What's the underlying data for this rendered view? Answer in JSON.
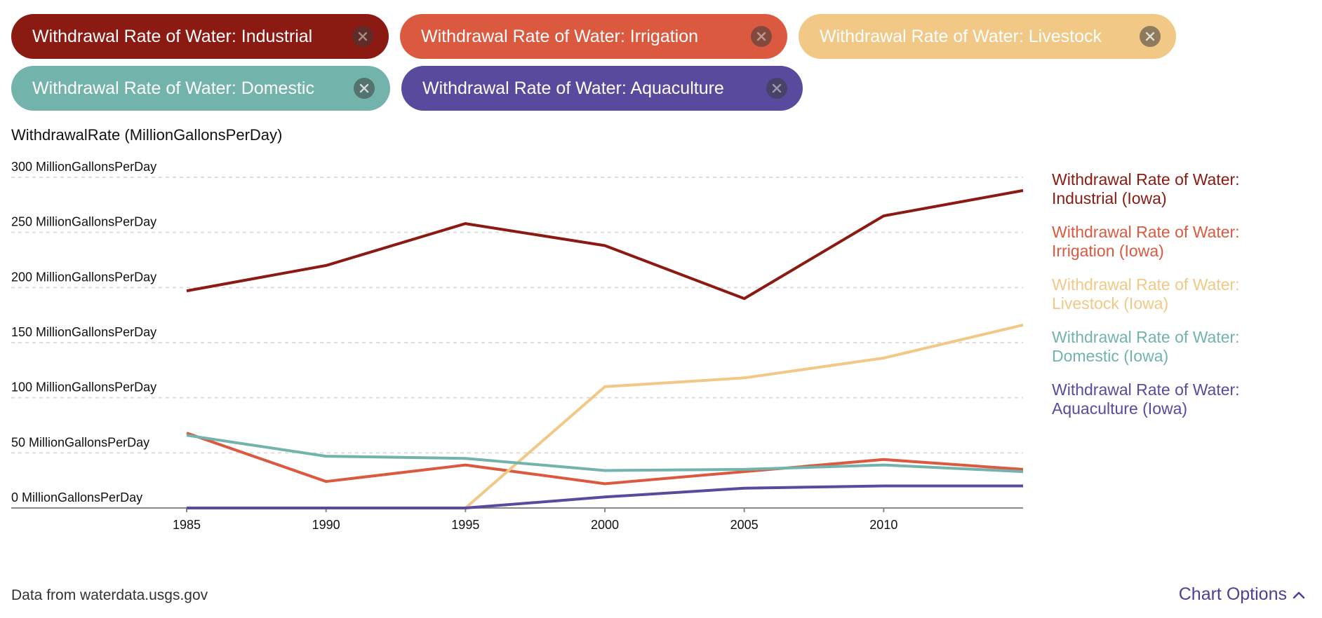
{
  "chips": [
    {
      "label": "Withdrawal Rate of Water: Industrial",
      "color": "#8b1a12"
    },
    {
      "label": "Withdrawal Rate of Water: Irrigation",
      "color": "#db5a3f"
    },
    {
      "label": "Withdrawal Rate of Water: Livestock",
      "color": "#f2c887"
    },
    {
      "label": "Withdrawal Rate of Water: Domestic",
      "color": "#72b3ac"
    },
    {
      "label": "Withdrawal Rate of Water: Aquaculture",
      "color": "#594a9e"
    }
  ],
  "chart_title_unit": "WithdrawalRate (MillionGallonsPerDay)",
  "source_text": "Data from waterdata.usgs.gov",
  "chart_options_label": "Chart Options",
  "chart_data": {
    "type": "line",
    "x": [
      1985,
      1990,
      1995,
      2000,
      2005,
      2010,
      2015
    ],
    "x_ticks": [
      "1985",
      "1990",
      "1995",
      "2000",
      "2005",
      "2010"
    ],
    "y_ticks": [
      {
        "value": 300,
        "label": "300 MillionGallonsPerDay"
      },
      {
        "value": 250,
        "label": "250 MillionGallonsPerDay"
      },
      {
        "value": 200,
        "label": "200 MillionGallonsPerDay"
      },
      {
        "value": 150,
        "label": "150 MillionGallonsPerDay"
      },
      {
        "value": 100,
        "label": "100 MillionGallonsPerDay"
      },
      {
        "value": 50,
        "label": "50 MillionGallonsPerDay"
      },
      {
        "value": 0,
        "label": "0 MillionGallonsPerDay"
      }
    ],
    "xlim": [
      1985,
      2015
    ],
    "ylim": [
      0,
      300
    ],
    "grid": true,
    "legend_placement": "right",
    "series": [
      {
        "name": "Withdrawal Rate of Water: Industrial (Iowa)",
        "color": "#8b1a12",
        "values": [
          197,
          220,
          258,
          238,
          190,
          265,
          288
        ]
      },
      {
        "name": "Withdrawal Rate of Water: Irrigation (Iowa)",
        "color": "#db5a3f",
        "values": [
          68,
          24,
          39,
          22,
          33,
          44,
          35
        ]
      },
      {
        "name": "Withdrawal Rate of Water: Livestock (Iowa)",
        "color": "#f2c887",
        "values": [
          null,
          null,
          0,
          110,
          118,
          136,
          166
        ]
      },
      {
        "name": "Withdrawal Rate of Water: Domestic (Iowa)",
        "color": "#72b3ac",
        "values": [
          66,
          47,
          45,
          34,
          35,
          39,
          33
        ]
      },
      {
        "name": "Withdrawal Rate of Water: Aquaculture (Iowa)",
        "color": "#594a9e",
        "values": [
          0,
          0,
          0,
          10,
          18,
          20,
          20
        ]
      }
    ]
  }
}
